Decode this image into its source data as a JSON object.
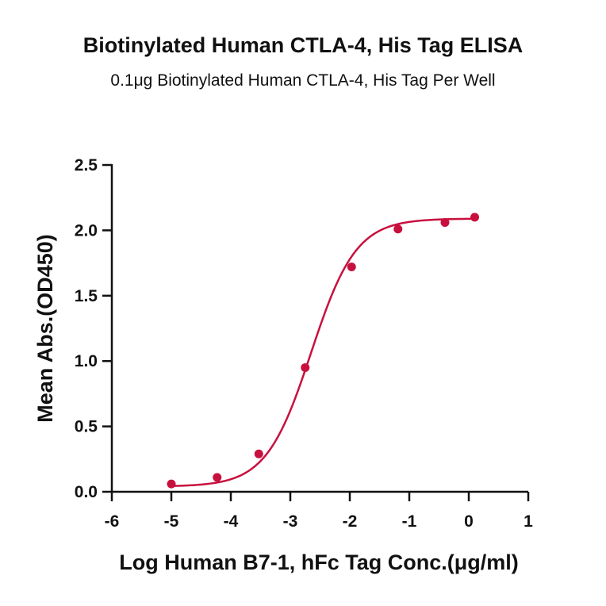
{
  "chart_data": {
    "type": "scatter",
    "title": "Biotinylated Human CTLA-4, His Tag ELISA",
    "subtitle": "0.1μg Biotinylated Human CTLA-4, His Tag Per Well",
    "xlabel": "Log Human B7-1, hFc Tag Conc.(μg/ml)",
    "ylabel": "Mean Abs.(OD450)",
    "xlim": [
      -6,
      1
    ],
    "ylim": [
      0,
      2.5
    ],
    "xticks": [
      -6,
      -5,
      -4,
      -3,
      -2,
      -1,
      0,
      1
    ],
    "yticks": [
      0.0,
      0.5,
      1.0,
      1.5,
      2.0,
      2.5
    ],
    "xtick_labels": [
      "-6",
      "-5",
      "-4",
      "-3",
      "-2",
      "-1",
      "0",
      "1"
    ],
    "ytick_labels": [
      "0.0",
      "0.5",
      "1.0",
      "1.5",
      "2.0",
      "2.5"
    ],
    "grid": false,
    "color": "#c8103e",
    "fit": "four-parameter logistic curve through points",
    "series": [
      {
        "x": [
          -5.0,
          -4.23,
          -3.53,
          -2.75,
          -1.97,
          -1.19,
          -0.4,
          0.1
        ],
        "y": [
          0.06,
          0.11,
          0.29,
          0.95,
          1.72,
          2.01,
          2.06,
          2.1
        ]
      }
    ]
  }
}
